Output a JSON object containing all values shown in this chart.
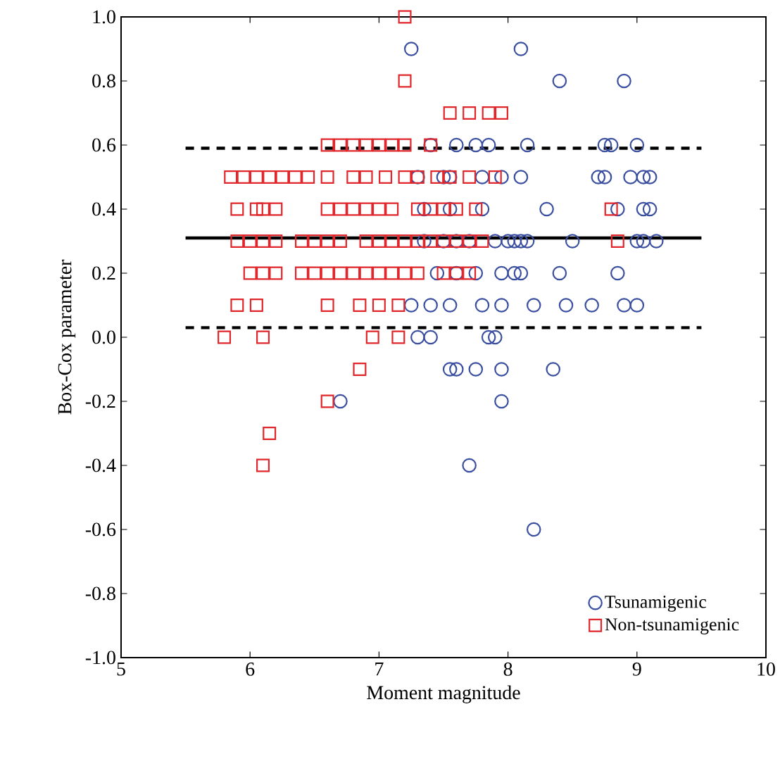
{
  "chart_data": {
    "type": "scatter",
    "xlabel": "Moment magnitude",
    "ylabel": "Box-Cox parameter",
    "xlim": [
      5,
      10
    ],
    "ylim": [
      -1.0,
      1.0
    ],
    "xticks": [
      5,
      6,
      7,
      8,
      9,
      10
    ],
    "yticks": [
      {
        "value": -1.0,
        "label": "-1.0"
      },
      {
        "value": -0.8,
        "label": "-0.8"
      },
      {
        "value": -0.6,
        "label": "-0.6"
      },
      {
        "value": -0.4,
        "label": "-0.4"
      },
      {
        "value": -0.2,
        "label": "-0.2"
      },
      {
        "value": 0.0,
        "label": "0.0"
      },
      {
        "value": 0.2,
        "label": "0.2"
      },
      {
        "value": 0.4,
        "label": "0.4"
      },
      {
        "value": 0.6,
        "label": "0.6"
      },
      {
        "value": 0.8,
        "label": "0.8"
      },
      {
        "value": 1.0,
        "label": "1.0"
      }
    ],
    "grid": false,
    "legend": "bottom right",
    "series": [
      {
        "name": "Tsunamigenic",
        "color": "#3a4fa0",
        "marker": "circle",
        "x": [
          7.25,
          8.1,
          8.4,
          8.9,
          7.4,
          7.6,
          7.75,
          7.85,
          8.15,
          8.75,
          8.8,
          9.0,
          7.3,
          7.5,
          7.55,
          7.8,
          7.95,
          8.1,
          8.7,
          8.75,
          8.95,
          9.05,
          9.1,
          7.35,
          7.55,
          7.8,
          8.3,
          8.85,
          9.05,
          9.1,
          7.35,
          7.5,
          7.6,
          7.7,
          7.9,
          8.0,
          8.05,
          8.1,
          8.15,
          8.5,
          9.0,
          9.05,
          9.15,
          7.45,
          7.6,
          7.75,
          7.95,
          8.05,
          8.1,
          8.4,
          8.85,
          7.25,
          7.4,
          7.55,
          7.8,
          7.95,
          8.2,
          8.45,
          8.65,
          8.9,
          9.0,
          7.3,
          7.4,
          7.85,
          7.9,
          7.55,
          7.6,
          7.75,
          7.95,
          8.35,
          6.7,
          7.95,
          7.7,
          8.2
        ],
        "values": [
          0.9,
          0.9,
          0.8,
          0.8,
          0.6,
          0.6,
          0.6,
          0.6,
          0.6,
          0.6,
          0.6,
          0.6,
          0.5,
          0.5,
          0.5,
          0.5,
          0.5,
          0.5,
          0.5,
          0.5,
          0.5,
          0.5,
          0.5,
          0.4,
          0.4,
          0.4,
          0.4,
          0.4,
          0.4,
          0.4,
          0.3,
          0.3,
          0.3,
          0.3,
          0.3,
          0.3,
          0.3,
          0.3,
          0.3,
          0.3,
          0.3,
          0.3,
          0.3,
          0.2,
          0.2,
          0.2,
          0.2,
          0.2,
          0.2,
          0.2,
          0.2,
          0.1,
          0.1,
          0.1,
          0.1,
          0.1,
          0.1,
          0.1,
          0.1,
          0.1,
          0.1,
          0.0,
          0.0,
          0.0,
          0.0,
          -0.1,
          -0.1,
          -0.1,
          -0.1,
          -0.1,
          -0.2,
          -0.2,
          -0.4,
          -0.6
        ]
      },
      {
        "name": "Non-tsunamigenic",
        "color": "#e0262b",
        "marker": "square",
        "x": [
          7.2,
          7.2,
          7.55,
          7.7,
          7.85,
          7.95,
          6.6,
          6.7,
          6.8,
          6.9,
          7.0,
          7.1,
          7.2,
          7.4,
          5.85,
          5.95,
          6.05,
          6.15,
          6.25,
          6.35,
          6.45,
          6.6,
          6.8,
          6.9,
          7.05,
          7.2,
          7.3,
          7.45,
          7.55,
          7.7,
          7.9,
          5.9,
          6.05,
          6.1,
          6.2,
          6.6,
          6.7,
          6.8,
          6.9,
          7.0,
          7.1,
          7.3,
          7.4,
          7.5,
          7.6,
          7.75,
          8.8,
          5.9,
          6.0,
          6.1,
          6.2,
          6.4,
          6.5,
          6.6,
          6.7,
          6.9,
          7.0,
          7.1,
          7.2,
          7.3,
          7.4,
          7.5,
          7.6,
          7.7,
          7.8,
          8.85,
          6.0,
          6.1,
          6.2,
          6.4,
          6.5,
          6.6,
          6.7,
          6.8,
          6.9,
          7.0,
          7.1,
          7.2,
          7.3,
          7.5,
          7.6,
          7.7,
          5.9,
          6.05,
          6.6,
          6.85,
          7.0,
          7.15,
          5.8,
          6.1,
          6.95,
          7.15,
          6.85,
          6.6,
          6.15,
          6.1
        ],
        "values": [
          1.0,
          0.8,
          0.7,
          0.7,
          0.7,
          0.7,
          0.6,
          0.6,
          0.6,
          0.6,
          0.6,
          0.6,
          0.6,
          0.6,
          0.5,
          0.5,
          0.5,
          0.5,
          0.5,
          0.5,
          0.5,
          0.5,
          0.5,
          0.5,
          0.5,
          0.5,
          0.5,
          0.5,
          0.5,
          0.5,
          0.5,
          0.4,
          0.4,
          0.4,
          0.4,
          0.4,
          0.4,
          0.4,
          0.4,
          0.4,
          0.4,
          0.4,
          0.4,
          0.4,
          0.4,
          0.4,
          0.4,
          0.3,
          0.3,
          0.3,
          0.3,
          0.3,
          0.3,
          0.3,
          0.3,
          0.3,
          0.3,
          0.3,
          0.3,
          0.3,
          0.3,
          0.3,
          0.3,
          0.3,
          0.3,
          0.3,
          0.2,
          0.2,
          0.2,
          0.2,
          0.2,
          0.2,
          0.2,
          0.2,
          0.2,
          0.2,
          0.2,
          0.2,
          0.2,
          0.2,
          0.2,
          0.2,
          0.1,
          0.1,
          0.1,
          0.1,
          0.1,
          0.1,
          0.0,
          0.0,
          0.0,
          0.0,
          -0.1,
          -0.2,
          -0.3,
          -0.4
        ]
      },
      {
        "type": "line",
        "color": "#000000",
        "line_style": "solid",
        "marker": "none",
        "x": [
          5.5,
          9.5
        ],
        "values": [
          0.31,
          0.31
        ]
      },
      {
        "type": "line",
        "color": "#000000",
        "line_style": "dashed",
        "marker": "none",
        "x": [
          5.5,
          9.5
        ],
        "values": [
          0.59,
          0.59
        ]
      },
      {
        "type": "line",
        "color": "#000000",
        "line_style": "dashed",
        "marker": "none",
        "x": [
          5.5,
          9.5
        ],
        "values": [
          0.03,
          0.03
        ]
      }
    ]
  }
}
